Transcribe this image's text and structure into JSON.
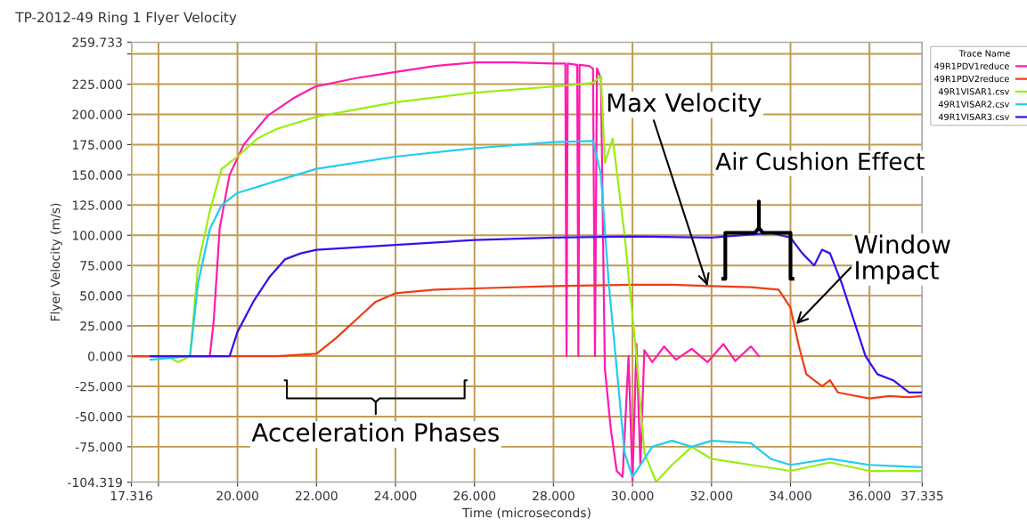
{
  "chart_data": {
    "type": "line",
    "title": "TP-2012-49 Ring 1 Flyer Velocity",
    "xlabel": "Time (microseconds)",
    "ylabel": "Flyer Velocity (m/s)",
    "legend_title": "Trace Name",
    "legend": "top right",
    "grid": true,
    "line_style": "solid",
    "marker": "none",
    "xlim": [
      17.316,
      37.335
    ],
    "ylim": [
      -104.319,
      259.733
    ],
    "xticks": [
      {
        "value": 17.316,
        "label": "17.316"
      },
      {
        "value": 18,
        "label": null
      },
      {
        "value": 20,
        "label": "20.000"
      },
      {
        "value": 22,
        "label": "22.000"
      },
      {
        "value": 24,
        "label": "24.000"
      },
      {
        "value": 26,
        "label": "26.000"
      },
      {
        "value": 28,
        "label": "28.000"
      },
      {
        "value": 30,
        "label": "30.000"
      },
      {
        "value": 32,
        "label": "32.000"
      },
      {
        "value": 34,
        "label": "34.000"
      },
      {
        "value": 36,
        "label": "36.000"
      },
      {
        "value": 37.335,
        "label": "37.335"
      }
    ],
    "yticks": [
      {
        "value": -104.319,
        "label": "-104.319"
      },
      {
        "value": -75,
        "label": "-75.000"
      },
      {
        "value": -50,
        "label": "-50.000"
      },
      {
        "value": -25,
        "label": "-25.000"
      },
      {
        "value": 0,
        "label": "0.000"
      },
      {
        "value": 25,
        "label": "25.000"
      },
      {
        "value": 50,
        "label": "50.000"
      },
      {
        "value": 75,
        "label": "75.000"
      },
      {
        "value": 100,
        "label": "100.000"
      },
      {
        "value": 125,
        "label": "125.000"
      },
      {
        "value": 150,
        "label": "150.000"
      },
      {
        "value": 175,
        "label": "175.000"
      },
      {
        "value": 200,
        "label": "200.000"
      },
      {
        "value": 225,
        "label": "225.000"
      },
      {
        "value": 250,
        "label": null
      },
      {
        "value": 259.733,
        "label": "259.733"
      }
    ],
    "series": [
      {
        "name": "49R1PDV1reduce",
        "color": "#ff1ab0",
        "x": [
          17.316,
          19.3,
          19.4,
          19.55,
          19.8,
          20.16,
          20.77,
          21.4,
          21.97,
          23.0,
          24.0,
          25.0,
          26.0,
          27.0,
          28.0,
          28.3,
          28.33,
          28.36,
          28.6,
          28.63,
          28.66,
          28.9,
          29.0,
          29.05,
          29.1,
          29.2,
          29.3,
          29.45,
          29.6,
          29.75,
          29.9,
          30.0,
          30.1,
          30.2,
          30.3,
          30.5,
          30.8,
          31.1,
          31.5,
          31.9,
          32.3,
          32.6,
          33.0,
          33.2
        ],
        "values": [
          0,
          0,
          30,
          106,
          150,
          175,
          199,
          213,
          223,
          230,
          235,
          240,
          243,
          243,
          242,
          242,
          0,
          242,
          241,
          0,
          241,
          240,
          238,
          0,
          238,
          230,
          -10,
          -60,
          -95,
          -100,
          0,
          -104,
          10,
          -90,
          5,
          -5,
          8,
          -3,
          6,
          -5,
          10,
          -4,
          8,
          0
        ]
      },
      {
        "name": "49R1PDV2reduce",
        "color": "#f03c14",
        "x": [
          17.316,
          21.0,
          22.0,
          22.5,
          23.0,
          23.5,
          24.0,
          25.0,
          26.0,
          28.0,
          30.0,
          31.0,
          32.0,
          33.0,
          33.7,
          34.0,
          34.2,
          34.4,
          34.8,
          35.0,
          35.2,
          35.5,
          36.0,
          36.5,
          37.0,
          37.335
        ],
        "values": [
          0,
          0,
          2,
          15,
          30,
          45,
          52,
          55,
          56,
          58,
          59,
          59,
          58,
          57,
          55,
          40,
          10,
          -15,
          -25,
          -20,
          -30,
          -32,
          -35,
          -33,
          -34,
          -33
        ]
      },
      {
        "name": "49R1VISAR1.csv",
        "color": "#99ee11",
        "x": [
          18.2,
          18.5,
          18.8,
          19.0,
          19.3,
          19.6,
          20.0,
          20.5,
          21.0,
          22.0,
          24.0,
          26.0,
          28.0,
          29.0,
          29.2,
          29.3,
          29.5,
          29.8,
          30.1,
          30.3,
          30.6,
          31.0,
          31.5,
          32.0,
          33.0,
          34.0,
          35.0,
          36.0,
          37.335
        ],
        "values": [
          0,
          -5,
          0,
          75,
          120,
          155,
          165,
          180,
          188,
          198,
          210,
          218,
          223,
          226,
          232,
          160,
          180,
          100,
          0,
          -80,
          -104,
          -90,
          -75,
          -85,
          -90,
          -95,
          -88,
          -95,
          -95
        ]
      },
      {
        "name": "49R1VISAR2.csv",
        "color": "#22ccee",
        "x": [
          17.8,
          18.8,
          19.0,
          19.3,
          19.6,
          20.0,
          21.0,
          22.0,
          24.0,
          26.0,
          28.0,
          29.0,
          29.2,
          29.4,
          29.6,
          29.8,
          30.0,
          30.5,
          31.0,
          31.5,
          32.0,
          33.0,
          33.5,
          34.0,
          35.0,
          36.0,
          37.335
        ],
        "values": [
          -3,
          0,
          60,
          105,
          125,
          135,
          145,
          155,
          165,
          172,
          177,
          178,
          150,
          60,
          -10,
          -80,
          -100,
          -75,
          -70,
          -75,
          -70,
          -72,
          -85,
          -90,
          -85,
          -90,
          -92
        ]
      },
      {
        "name": "49R1VISAR3.csv",
        "color": "#3311ee",
        "x": [
          17.8,
          19.8,
          20.0,
          20.4,
          20.8,
          21.2,
          21.6,
          22.0,
          24.0,
          26.0,
          28.0,
          30.0,
          32.0,
          33.5,
          34.0,
          34.3,
          34.6,
          34.8,
          35.0,
          35.3,
          35.6,
          35.9,
          36.2,
          36.6,
          37.0,
          37.335
        ],
        "values": [
          0,
          0,
          20,
          45,
          65,
          80,
          85,
          88,
          92,
          96,
          98,
          99,
          98,
          102,
          98,
          85,
          75,
          88,
          85,
          60,
          30,
          0,
          -15,
          -20,
          -30,
          -30
        ]
      }
    ],
    "annotations": [
      {
        "text": "Max Velocity",
        "x": 31.9,
        "y": 58
      },
      "Air Cushion Effect",
      {
        "text": "Window\nImpact",
        "x": 34.1,
        "y": 25
      },
      "Acceleration Phases"
    ]
  }
}
